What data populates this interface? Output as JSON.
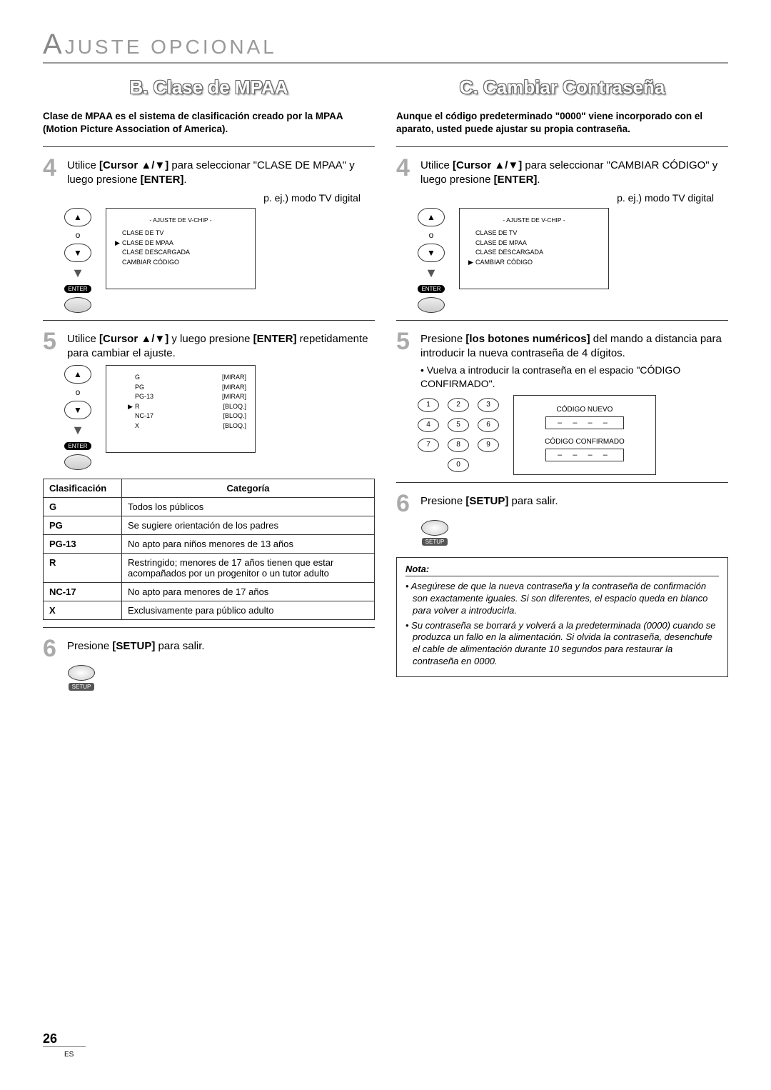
{
  "header": {
    "big": "A",
    "rest": "JUSTE   OPCIONAL"
  },
  "left": {
    "title": "B.  Clase de MPAA",
    "intro": "Clase de MPAA es el sistema de clasificación creado por la MPAA (Motion Picture Association of America).",
    "step4": {
      "num": "4",
      "text_a": "Utilice ",
      "bold_a": "[Cursor ▲/▼]",
      "text_b": " para seleccionar \"CLASE DE MPAA\" y luego presione ",
      "bold_b": "[ENTER]",
      "text_c": "."
    },
    "caption": "p. ej.) modo TV digital",
    "screen1": {
      "title": "- AJUSTE DE V-CHIP -",
      "items": [
        {
          "mark": "",
          "label": "CLASE DE TV"
        },
        {
          "mark": "▶",
          "label": "CLASE DE MPAA"
        },
        {
          "mark": "",
          "label": "CLASE DESCARGADA"
        },
        {
          "mark": "",
          "label": "CAMBIAR CÓDIGO"
        }
      ]
    },
    "step5": {
      "num": "5",
      "text_a": "Utilice ",
      "bold_a": "[Cursor ▲/▼]",
      "text_b": " y luego presione  ",
      "bold_b": "[ENTER]",
      "text_c": " repetidamente para cambiar el ajuste."
    },
    "screen2": {
      "items": [
        {
          "mark": "",
          "label": "G",
          "val": "[MIRAR]"
        },
        {
          "mark": "",
          "label": "PG",
          "val": "[MIRAR]"
        },
        {
          "mark": "",
          "label": "PG-13",
          "val": "[MIRAR]"
        },
        {
          "mark": "▶",
          "label": "R",
          "val": "[BLOQ.]"
        },
        {
          "mark": "",
          "label": "NC-17",
          "val": "[BLOQ.]"
        },
        {
          "mark": "",
          "label": "X",
          "val": "[BLOQ.]"
        }
      ]
    },
    "table": {
      "h1": "Clasificación",
      "h2": "Categoría",
      "rows": [
        {
          "c": "G",
          "d": "Todos los públicos"
        },
        {
          "c": "PG",
          "d": "Se sugiere orientación de los padres"
        },
        {
          "c": "PG-13",
          "d": "No apto para niños menores de 13 años"
        },
        {
          "c": "R",
          "d": "Restringido; menores de 17 años tienen que estar acompañados por un progenitor o un tutor adulto"
        },
        {
          "c": "NC-17",
          "d": "No apto para menores de 17 años"
        },
        {
          "c": "X",
          "d": "Exclusivamente para público adulto"
        }
      ]
    },
    "step6": {
      "num": "6",
      "text_a": "Presione ",
      "bold_a": "[SETUP]",
      "text_b": " para salir."
    },
    "enter_label": "ENTER",
    "setup_label": "SETUP"
  },
  "right": {
    "title": "C.  Cambiar Contraseña",
    "intro": "Aunque el código predeterminado \"0000\" viene incorporado con el aparato, usted puede ajustar su propia contraseña.",
    "step4": {
      "num": "4",
      "text_a": "Utilice ",
      "bold_a": "[Cursor ▲/▼]",
      "text_b": " para seleccionar \"CAMBIAR CÓDIGO\" y luego presione ",
      "bold_b": "[ENTER]",
      "text_c": "."
    },
    "caption": "p. ej.) modo TV digital",
    "screen1": {
      "title": "- AJUSTE DE V-CHIP -",
      "items": [
        {
          "mark": "",
          "label": "CLASE DE TV"
        },
        {
          "mark": "",
          "label": "CLASE DE MPAA"
        },
        {
          "mark": "",
          "label": "CLASE DESCARGADA"
        },
        {
          "mark": "▶",
          "label": "CAMBIAR CÓDIGO"
        }
      ]
    },
    "step5": {
      "num": "5",
      "text_a": "Presione ",
      "bold_a": "[los botones numéricos]",
      "text_b": " del mando a distancia para introducir la nueva contraseña de 4 dígitos.",
      "bullet": "Vuelva a introducir la contraseña en el espacio \"CÓDIGO CONFIRMADO\"."
    },
    "keypad": [
      "1",
      "2",
      "3",
      "4",
      "5",
      "6",
      "7",
      "8",
      "9",
      "0"
    ],
    "codebox": {
      "l1": "CÓDIGO NUEVO",
      "v1": "– – – –",
      "l2": "CÓDIGO CONFIRMADO",
      "v2": "– – – –"
    },
    "step6": {
      "num": "6",
      "text_a": "Presione ",
      "bold_a": "[SETUP]",
      "text_b": " para salir."
    },
    "note": {
      "hd": "Nota:",
      "items": [
        "Asegúrese de que la nueva contraseña y la contraseña de confirmación son exactamente iguales. Si son diferentes, el espacio queda en blanco para volver a introducirla.",
        "Su contraseña se borrará y volverá a la predeterminada (0000) cuando se produzca un fallo en la alimentación. Si olvida la contraseña, desenchufe el cable de alimentación durante 10 segundos para restaurar la contraseña en 0000."
      ]
    },
    "enter_label": "ENTER",
    "setup_label": "SETUP"
  },
  "pagenum": "26",
  "lang": "ES"
}
